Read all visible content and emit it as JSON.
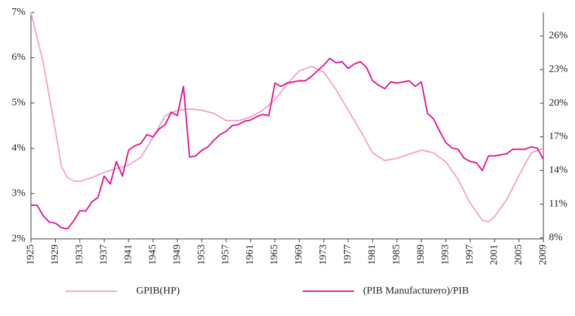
{
  "chart_data": {
    "type": "line",
    "x": [
      1925,
      1926,
      1927,
      1928,
      1929,
      1930,
      1931,
      1932,
      1933,
      1934,
      1935,
      1936,
      1937,
      1938,
      1939,
      1940,
      1941,
      1942,
      1943,
      1944,
      1945,
      1946,
      1947,
      1948,
      1949,
      1950,
      1951,
      1952,
      1953,
      1954,
      1955,
      1956,
      1957,
      1958,
      1959,
      1960,
      1961,
      1962,
      1963,
      1964,
      1965,
      1966,
      1967,
      1968,
      1969,
      1970,
      1971,
      1972,
      1973,
      1974,
      1975,
      1976,
      1977,
      1978,
      1979,
      1980,
      1981,
      1982,
      1983,
      1984,
      1985,
      1986,
      1987,
      1988,
      1989,
      1990,
      1991,
      1992,
      1993,
      1994,
      1995,
      1996,
      1997,
      1998,
      1999,
      2000,
      2001,
      2002,
      2003,
      2004,
      2005,
      2006,
      2007,
      2008,
      2009
    ],
    "series": [
      {
        "name": "GPIB(HP)",
        "color": "#f4a3c6",
        "axis": "y",
        "values": [
          7.0,
          null,
          5.9,
          null,
          4.4,
          3.6,
          3.35,
          3.28,
          3.27,
          null,
          3.35,
          null,
          3.47,
          null,
          3.55,
          null,
          3.63,
          null,
          3.8,
          null,
          4.23,
          null,
          4.72,
          null,
          4.84,
          null,
          4.87,
          null,
          4.84,
          null,
          4.77,
          null,
          4.61,
          null,
          4.61,
          null,
          4.69,
          null,
          4.84,
          null,
          5.07,
          null,
          5.42,
          null,
          5.71,
          null,
          5.81,
          null,
          5.68,
          null,
          5.3,
          null,
          4.84,
          null,
          4.39,
          null,
          3.9,
          null,
          3.73,
          null,
          3.78,
          null,
          3.87,
          null,
          3.96,
          null,
          3.9,
          null,
          3.7,
          null,
          3.32,
          null,
          2.79,
          null,
          2.41,
          2.38,
          2.49,
          null,
          2.87,
          null,
          3.4,
          null,
          3.9,
          null,
          4.0
        ]
      },
      {
        "name": "(PIB Manufacturero)/PIB",
        "color": "#e0148c",
        "axis": "y2",
        "values": [
          10.9,
          10.9,
          9.97,
          9.4,
          9.3,
          8.9,
          8.8,
          9.5,
          10.4,
          10.4,
          11.2,
          11.6,
          13.5,
          12.8,
          14.8,
          13.5,
          15.8,
          16.2,
          16.4,
          17.2,
          17.0,
          17.7,
          18.1,
          19.2,
          18.9,
          21.5,
          15.2,
          15.3,
          15.8,
          16.1,
          16.7,
          17.2,
          17.5,
          18.0,
          18.1,
          18.4,
          18.5,
          18.8,
          19.0,
          18.9,
          21.8,
          21.5,
          21.8,
          21.9,
          22.0,
          22.0,
          22.4,
          22.9,
          23.4,
          24.0,
          23.6,
          23.7,
          23.1,
          23.5,
          23.7,
          23.2,
          22.0,
          21.6,
          21.3,
          21.9,
          21.8,
          21.9,
          22.0,
          21.5,
          21.9,
          19.1,
          18.6,
          17.5,
          16.5,
          16.0,
          15.9,
          15.1,
          14.8,
          14.7,
          14.0,
          15.3,
          15.3,
          15.4,
          15.5,
          15.9,
          15.9,
          15.9,
          16.1,
          16.0,
          15.0
        ]
      }
    ],
    "xlim": [
      1925,
      2009
    ],
    "xticks": [
      1925,
      1929,
      1933,
      1937,
      1941,
      1945,
      1949,
      1953,
      1957,
      1961,
      1965,
      1969,
      1973,
      1977,
      1981,
      1985,
      1989,
      1993,
      1997,
      2001,
      2005,
      2009
    ],
    "ylim": [
      2,
      7
    ],
    "yticks": [
      {
        "value": 2,
        "label": "2%"
      },
      {
        "value": 3,
        "label": "3%"
      },
      {
        "value": 4,
        "label": "4%"
      },
      {
        "value": 5,
        "label": "5%"
      },
      {
        "value": 6,
        "label": "6%"
      },
      {
        "value": 7,
        "label": "7%"
      }
    ],
    "y2lim": [
      7.9,
      28.1
    ],
    "y2ticks": [
      {
        "value": 8,
        "label": "8%"
      },
      {
        "value": 11,
        "label": "11%"
      },
      {
        "value": 14,
        "label": "14%"
      },
      {
        "value": 17,
        "label": "17%"
      },
      {
        "value": 20,
        "label": "20%"
      },
      {
        "value": 23,
        "label": "23%"
      },
      {
        "value": 26,
        "label": "26%"
      }
    ],
    "legend": "bottom"
  }
}
